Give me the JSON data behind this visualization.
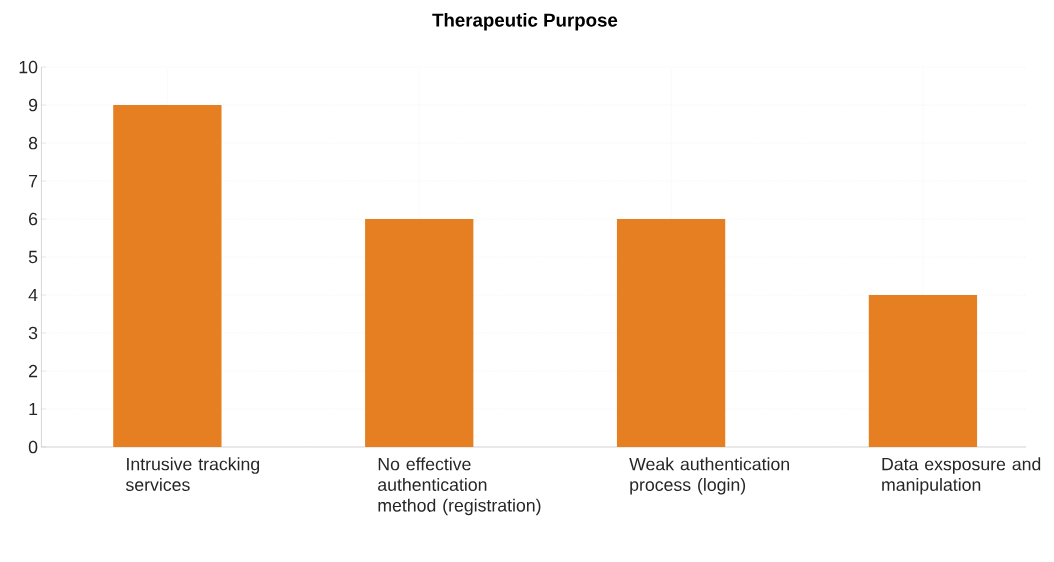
{
  "chart_data": {
    "type": "bar",
    "title": "Therapeutic Purpose",
    "categories": [
      "Intrusive tracking services",
      "No effective authentication method (registration)",
      "Weak authentication process (login)",
      "Data exsposure and manipulation"
    ],
    "values": [
      9,
      6,
      6,
      4
    ],
    "color": "#e67e22",
    "ylim": [
      0,
      10
    ],
    "yticks": [
      0,
      1,
      2,
      3,
      4,
      5,
      6,
      7,
      8,
      9,
      10
    ],
    "grid": true
  }
}
